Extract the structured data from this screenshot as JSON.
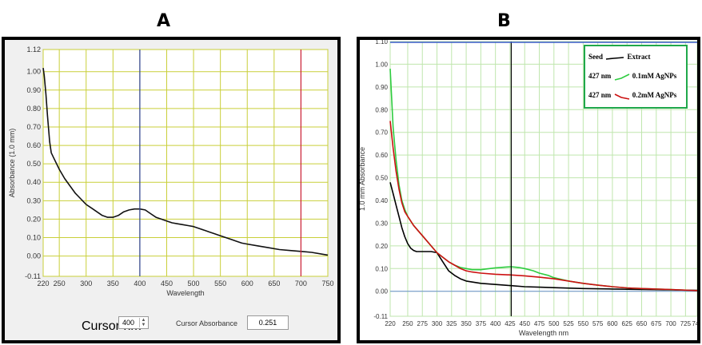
{
  "panels": {
    "a_label": "A",
    "b_label": "B"
  },
  "chart_data": [
    {
      "type": "line",
      "panel": "A",
      "xlabel": "Wavelength",
      "ylabel": "Absorbance (1.0 mm)",
      "xlim": [
        220,
        750
      ],
      "ylim": [
        -0.11,
        1.12
      ],
      "x_ticks": [
        220,
        250,
        300,
        350,
        400,
        450,
        500,
        550,
        600,
        650,
        700,
        750
      ],
      "y_ticks": [
        -0.11,
        0.0,
        0.1,
        0.2,
        0.3,
        0.4,
        0.5,
        0.6,
        0.7,
        0.8,
        0.9,
        1.0,
        1.12
      ],
      "y_tick_labels": [
        "-0.11",
        "0.00",
        "0.10",
        "0.20",
        "0.30",
        "0.40",
        "0.50",
        "0.60",
        "0.70",
        "0.80",
        "0.90",
        "1.00",
        "1.12"
      ],
      "grid": true,
      "vlines": [
        {
          "x": 400,
          "color": "#2b3f8f"
        },
        {
          "x": 700,
          "color": "#cc1f3a"
        }
      ],
      "series": [
        {
          "color": "#111111",
          "x": [
            220,
            222,
            225,
            228,
            232,
            235,
            240,
            245,
            250,
            260,
            270,
            280,
            290,
            300,
            310,
            320,
            330,
            340,
            350,
            360,
            370,
            380,
            390,
            400,
            410,
            420,
            430,
            440,
            450,
            460,
            470,
            480,
            490,
            500,
            510,
            520,
            530,
            540,
            550,
            560,
            570,
            580,
            590,
            600,
            620,
            640,
            660,
            680,
            700,
            720,
            740,
            750
          ],
          "y": [
            1.02,
            0.98,
            0.88,
            0.76,
            0.62,
            0.56,
            0.53,
            0.5,
            0.47,
            0.42,
            0.38,
            0.34,
            0.31,
            0.28,
            0.26,
            0.24,
            0.22,
            0.21,
            0.21,
            0.22,
            0.24,
            0.25,
            0.255,
            0.255,
            0.25,
            0.23,
            0.21,
            0.2,
            0.19,
            0.18,
            0.175,
            0.17,
            0.165,
            0.16,
            0.15,
            0.14,
            0.13,
            0.12,
            0.11,
            0.1,
            0.09,
            0.08,
            0.07,
            0.065,
            0.055,
            0.045,
            0.035,
            0.03,
            0.025,
            0.02,
            0.01,
            0.005
          ]
        }
      ],
      "cursor_nm_label": "Cursor nm",
      "cursor_nm_value": "400",
      "cursor_absorbance_label": "Cursor Absorbance",
      "cursor_absorbance_value": "0.251"
    },
    {
      "type": "line",
      "panel": "B",
      "xlabel": "Wavelength nm",
      "ylabel": "1.0 mm Absorbance",
      "xlim": [
        220,
        745
      ],
      "ylim": [
        -0.11,
        1.1
      ],
      "x_ticks": [
        220,
        250,
        275,
        300,
        325,
        350,
        375,
        400,
        425,
        450,
        475,
        500,
        525,
        550,
        575,
        600,
        625,
        650,
        675,
        700,
        725,
        745
      ],
      "x_tick_labels": [
        "220",
        "250",
        "275",
        "300",
        "325",
        "350",
        "375",
        "400",
        "425",
        "450",
        "475",
        "500",
        "525",
        "550",
        "575",
        "600",
        "625",
        "650",
        "675",
        "700",
        "725",
        "745"
      ],
      "y_ticks": [
        -0.11,
        0.0,
        0.1,
        0.2,
        0.3,
        0.4,
        0.5,
        0.6,
        0.7,
        0.8,
        0.9,
        1.0,
        1.1
      ],
      "y_tick_labels": [
        "-0.11",
        "0.00",
        "0.10",
        "0.20",
        "0.30",
        "0.40",
        "0.50",
        "0.60",
        "0.70",
        "0.80",
        "0.90",
        "1.00",
        "1.10"
      ],
      "grid": true,
      "vlines": [
        {
          "x": 427,
          "color": "#000000"
        }
      ],
      "series": [
        {
          "name": "Extract",
          "color": "#000000",
          "x": [
            220,
            225,
            230,
            235,
            240,
            245,
            250,
            255,
            260,
            265,
            270,
            275,
            280,
            290,
            300,
            310,
            320,
            330,
            340,
            350,
            375,
            400,
            425,
            450,
            475,
            500,
            550,
            600,
            650,
            700,
            745
          ],
          "y": [
            0.48,
            0.43,
            0.38,
            0.33,
            0.28,
            0.24,
            0.21,
            0.19,
            0.18,
            0.175,
            0.175,
            0.175,
            0.175,
            0.175,
            0.17,
            0.13,
            0.09,
            0.07,
            0.055,
            0.045,
            0.035,
            0.03,
            0.025,
            0.02,
            0.018,
            0.016,
            0.012,
            0.01,
            0.008,
            0.006,
            0.004
          ]
        },
        {
          "name": "0.1mM AgNPs",
          "color": "#2ecc40",
          "x": [
            220,
            225,
            230,
            235,
            240,
            245,
            250,
            260,
            270,
            280,
            290,
            300,
            310,
            320,
            330,
            340,
            350,
            360,
            375,
            390,
            400,
            415,
            427,
            440,
            450,
            465,
            475,
            490,
            500,
            525,
            550,
            575,
            600,
            625,
            650,
            675,
            700,
            725,
            745
          ],
          "y": [
            0.98,
            0.72,
            0.58,
            0.47,
            0.4,
            0.36,
            0.33,
            0.29,
            0.26,
            0.23,
            0.2,
            0.17,
            0.15,
            0.13,
            0.115,
            0.105,
            0.1,
            0.095,
            0.095,
            0.1,
            0.103,
            0.106,
            0.108,
            0.105,
            0.1,
            0.09,
            0.08,
            0.07,
            0.06,
            0.045,
            0.035,
            0.027,
            0.02,
            0.015,
            0.012,
            0.01,
            0.008,
            0.005,
            0.003
          ]
        },
        {
          "name": "0.2mM AgNPs",
          "color": "#cc1111",
          "x": [
            220,
            225,
            230,
            235,
            240,
            245,
            250,
            260,
            270,
            280,
            290,
            300,
            310,
            320,
            330,
            340,
            350,
            360,
            375,
            400,
            427,
            450,
            475,
            500,
            525,
            550,
            575,
            600,
            625,
            650,
            675,
            700,
            725,
            745
          ],
          "y": [
            0.75,
            0.63,
            0.53,
            0.45,
            0.39,
            0.35,
            0.33,
            0.29,
            0.26,
            0.23,
            0.2,
            0.17,
            0.15,
            0.13,
            0.115,
            0.1,
            0.09,
            0.085,
            0.08,
            0.075,
            0.072,
            0.068,
            0.062,
            0.055,
            0.045,
            0.035,
            0.027,
            0.02,
            0.015,
            0.012,
            0.01,
            0.008,
            0.005,
            0.003
          ]
        }
      ],
      "legend": {
        "border_color": "#1fa84a",
        "row1_left": "Seed",
        "row1_right": "Extract",
        "row2_left": "427 nm",
        "row2_right": "0.1mM AgNPs",
        "row3_left": "427 nm",
        "row3_right": "0.2mM AgNPs"
      }
    }
  ]
}
